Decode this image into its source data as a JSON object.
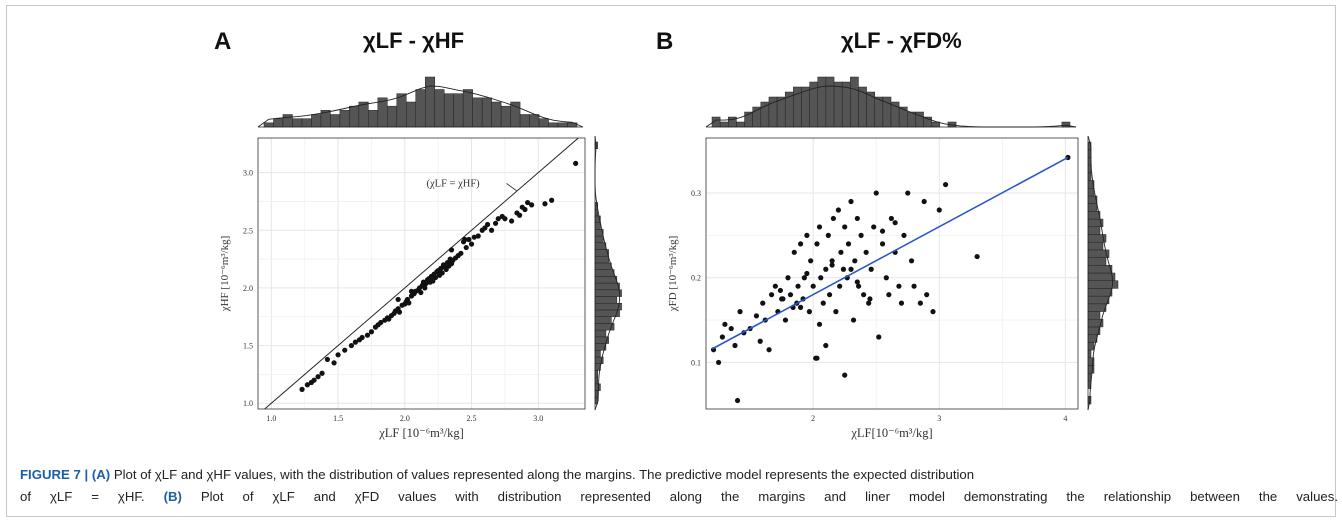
{
  "panels": [
    {
      "letter": "A",
      "title": "χLF - χHF",
      "xlabel": "χLF [10⁻⁶m³/kg]",
      "ylabel": "χHF [10⁻⁶m³/kg]",
      "annotation": "(χLF = χHF)"
    },
    {
      "letter": "B",
      "title": "χLF - χFD%",
      "xlabel": "χLF[10⁻⁶m³/kg]",
      "ylabel": "χFD [10⁻⁶m³/kg]"
    }
  ],
  "caption": {
    "fig_label": "FIGURE 7 | (A)",
    "line1_rest": " Plot of χLF and χHF values, with the distribution of values represented along the margins. The predictive model represents the expected distribution",
    "line2_start": "of χLF = χHF. ",
    "b_label": "(B)",
    "line2_rest": " Plot of χLF and χFD values with distribution represented along the margins and liner model demonstrating the relationship between the values."
  },
  "colors": {
    "points": "#111111",
    "histogram_fill": "#555555",
    "regression_line": "#2a57c9",
    "grid": "#e6e6e6",
    "caption_label": "#1b5fa7"
  },
  "chart_data": [
    {
      "type": "scatter",
      "title": "χLF - χHF",
      "xlabel": "χLF [10⁻⁶m³/kg]",
      "ylabel": "χHF [10⁻⁶m³/kg]",
      "xlim": [
        0.9,
        3.35
      ],
      "ylim": [
        0.95,
        3.3
      ],
      "xticks": [
        "1.0",
        "1.5",
        "2.0",
        "2.5",
        "3.0"
      ],
      "yticks": [
        "1.0",
        "1.5",
        "2.0",
        "2.5",
        "3.0"
      ],
      "grid": true,
      "reference_line": {
        "label": "(χLF = χHF)",
        "slope": 1,
        "intercept": 0
      },
      "x": [
        1.23,
        1.27,
        1.3,
        1.32,
        1.35,
        1.38,
        1.42,
        1.47,
        1.5,
        1.55,
        1.6,
        1.63,
        1.66,
        1.68,
        1.72,
        1.75,
        1.78,
        1.8,
        1.82,
        1.85,
        1.87,
        1.88,
        1.9,
        1.92,
        1.93,
        1.95,
        1.96,
        1.98,
        2.0,
        2.01,
        2.02,
        2.03,
        2.05,
        2.06,
        2.07,
        2.08,
        2.1,
        2.11,
        2.12,
        2.13,
        2.14,
        2.15,
        2.16,
        2.17,
        2.18,
        2.19,
        2.2,
        2.21,
        2.22,
        2.23,
        2.24,
        2.25,
        2.26,
        2.27,
        2.28,
        2.29,
        2.3,
        2.31,
        2.32,
        2.33,
        2.34,
        2.35,
        2.36,
        2.38,
        2.4,
        2.42,
        2.44,
        2.46,
        2.48,
        2.5,
        2.52,
        2.55,
        2.58,
        2.6,
        2.62,
        2.65,
        2.68,
        2.7,
        2.73,
        2.75,
        2.8,
        2.84,
        2.86,
        2.88,
        2.9,
        2.92,
        2.95,
        3.05,
        3.1,
        3.28,
        2.45,
        2.35,
        2.15,
        2.05,
        1.95
      ],
      "y": [
        1.12,
        1.16,
        1.18,
        1.2,
        1.23,
        1.26,
        1.38,
        1.35,
        1.42,
        1.46,
        1.5,
        1.53,
        1.55,
        1.57,
        1.59,
        1.62,
        1.66,
        1.68,
        1.7,
        1.72,
        1.74,
        1.73,
        1.76,
        1.78,
        1.8,
        1.82,
        1.79,
        1.85,
        1.86,
        1.88,
        1.9,
        1.87,
        1.93,
        1.96,
        1.95,
        1.97,
        1.98,
        2.0,
        1.96,
        2.02,
        2.05,
        2.03,
        2.04,
        2.07,
        2.08,
        2.05,
        2.1,
        2.06,
        2.12,
        2.09,
        2.14,
        2.15,
        2.11,
        2.17,
        2.13,
        2.2,
        2.18,
        2.16,
        2.22,
        2.19,
        2.25,
        2.21,
        2.24,
        2.26,
        2.28,
        2.3,
        2.4,
        2.35,
        2.42,
        2.38,
        2.44,
        2.45,
        2.5,
        2.52,
        2.55,
        2.5,
        2.56,
        2.6,
        2.62,
        2.6,
        2.58,
        2.65,
        2.63,
        2.7,
        2.68,
        2.74,
        2.72,
        2.73,
        2.76,
        3.08,
        2.42,
        2.33,
        2.0,
        1.97,
        1.9
      ],
      "x_marginal_counts": [
        1,
        2,
        3,
        2,
        2,
        3,
        4,
        3,
        4,
        5,
        6,
        4,
        7,
        5,
        8,
        6,
        9,
        12,
        9,
        8,
        8,
        9,
        7,
        7,
        6,
        5,
        6,
        3,
        3,
        2,
        1,
        1,
        1
      ],
      "y_marginal_counts": [
        1,
        1,
        2,
        1,
        1,
        2,
        3,
        2,
        4,
        5,
        4,
        7,
        6,
        9,
        10,
        8,
        11,
        9,
        8,
        7,
        6,
        5,
        5,
        4,
        3,
        3,
        2,
        2,
        1,
        1,
        0,
        0,
        0,
        0,
        0,
        0,
        0,
        0,
        1
      ]
    },
    {
      "type": "scatter",
      "title": "χLF - χFD%",
      "xlabel": "χLF[10⁻⁶m³/kg]",
      "ylabel": "χFD [10⁻⁶m³/kg]",
      "xlim": [
        1.15,
        4.1
      ],
      "ylim": [
        0.045,
        0.365
      ],
      "xticks": [
        "2",
        "3",
        "4"
      ],
      "yticks": [
        "0.1",
        "0.2",
        "0.3"
      ],
      "grid": true,
      "regression_line": {
        "x": [
          1.2,
          4.02
        ],
        "y": [
          0.116,
          0.342
        ]
      },
      "x": [
        1.21,
        1.25,
        1.28,
        1.3,
        1.35,
        1.38,
        1.4,
        1.42,
        1.45,
        1.5,
        1.55,
        1.58,
        1.6,
        1.62,
        1.65,
        1.67,
        1.7,
        1.72,
        1.74,
        1.76,
        1.78,
        1.8,
        1.82,
        1.84,
        1.85,
        1.87,
        1.88,
        1.9,
        1.92,
        1.93,
        1.95,
        1.97,
        1.98,
        2.0,
        2.02,
        2.03,
        2.05,
        2.06,
        2.08,
        2.1,
        2.12,
        2.13,
        2.15,
        2.16,
        2.18,
        2.2,
        2.21,
        2.22,
        2.24,
        2.25,
        2.27,
        2.28,
        2.3,
        2.32,
        2.33,
        2.35,
        2.36,
        2.38,
        2.4,
        2.42,
        2.44,
        2.46,
        2.48,
        2.5,
        2.52,
        2.55,
        2.58,
        2.6,
        2.62,
        2.65,
        2.68,
        2.7,
        2.72,
        2.75,
        2.78,
        2.8,
        2.85,
        2.88,
        2.9,
        2.95,
        3.0,
        3.05,
        3.3,
        4.02,
        2.03,
        2.25,
        2.1,
        1.95,
        2.15,
        2.35,
        2.45,
        2.55,
        2.65,
        2.05,
        1.9,
        1.75,
        2.3
      ],
      "y": [
        0.115,
        0.1,
        0.13,
        0.145,
        0.14,
        0.12,
        0.055,
        0.16,
        0.135,
        0.14,
        0.155,
        0.125,
        0.17,
        0.15,
        0.115,
        0.18,
        0.19,
        0.16,
        0.185,
        0.175,
        0.15,
        0.2,
        0.18,
        0.165,
        0.23,
        0.17,
        0.19,
        0.24,
        0.175,
        0.2,
        0.25,
        0.16,
        0.22,
        0.19,
        0.105,
        0.24,
        0.26,
        0.2,
        0.17,
        0.21,
        0.25,
        0.18,
        0.22,
        0.27,
        0.16,
        0.28,
        0.19,
        0.23,
        0.21,
        0.26,
        0.2,
        0.24,
        0.29,
        0.15,
        0.22,
        0.27,
        0.19,
        0.25,
        0.18,
        0.23,
        0.17,
        0.21,
        0.26,
        0.3,
        0.13,
        0.24,
        0.2,
        0.18,
        0.27,
        0.23,
        0.19,
        0.17,
        0.25,
        0.3,
        0.22,
        0.19,
        0.17,
        0.29,
        0.18,
        0.16,
        0.28,
        0.31,
        0.225,
        0.342,
        0.105,
        0.085,
        0.12,
        0.205,
        0.215,
        0.195,
        0.175,
        0.255,
        0.265,
        0.145,
        0.165,
        0.175,
        0.21
      ],
      "x_marginal_counts": [
        2,
        1,
        2,
        1,
        3,
        4,
        5,
        6,
        6,
        7,
        8,
        8,
        9,
        10,
        10,
        9,
        9,
        10,
        8,
        7,
        6,
        6,
        5,
        4,
        3,
        3,
        2,
        1,
        0,
        1,
        0,
        0,
        0,
        0,
        0,
        0,
        0,
        0,
        0,
        0,
        0,
        0,
        0,
        1
      ],
      "y_marginal_counts": [
        1,
        0,
        1,
        1,
        2,
        2,
        1,
        2,
        3,
        4,
        5,
        4,
        6,
        7,
        8,
        10,
        9,
        8,
        6,
        7,
        5,
        6,
        4,
        5,
        4,
        3,
        3,
        2,
        2,
        1,
        1,
        1,
        1,
        1
      ]
    }
  ]
}
